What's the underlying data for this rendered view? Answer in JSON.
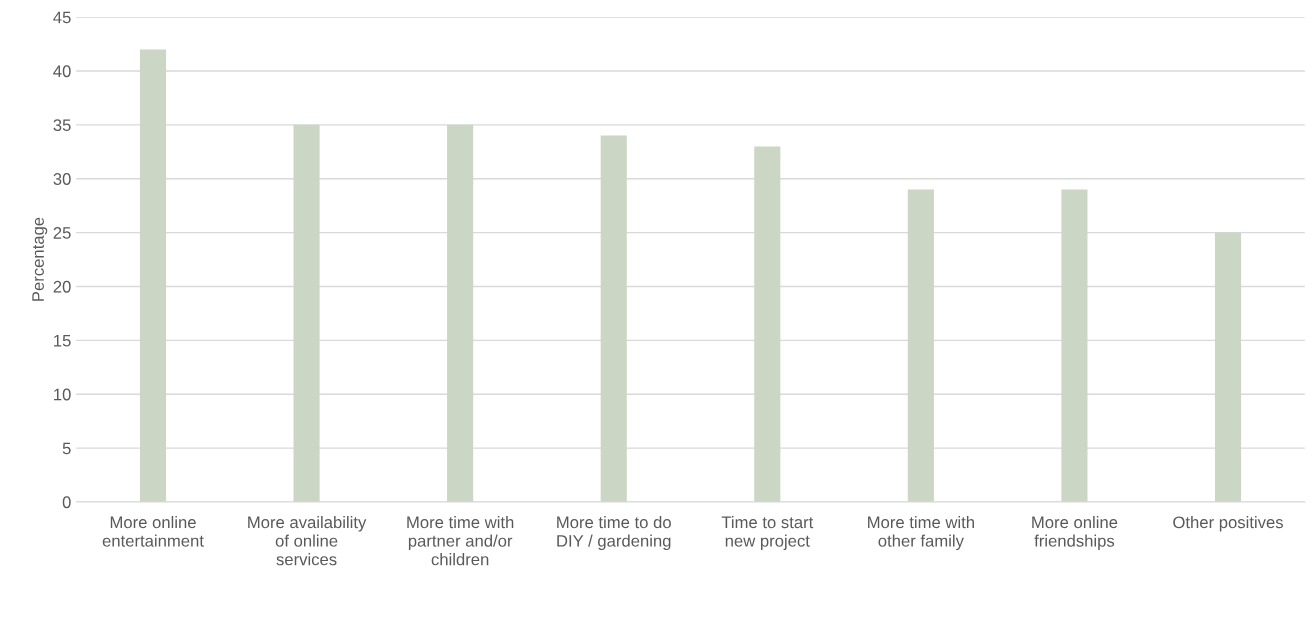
{
  "chart_data": {
    "type": "bar",
    "ylabel": "Percentage",
    "categories": [
      "More online entertainment",
      "More availability of online services",
      "More time with partner and/or children",
      "More time to do DIY / gardening",
      "Time to start new project",
      "More time with other family",
      "More online friendships",
      "Other positives"
    ],
    "values": [
      42,
      35,
      35,
      34,
      33,
      29,
      29,
      25
    ],
    "color": "#ccd6c4",
    "ylim": [
      0,
      45
    ],
    "yticks": [
      0,
      5,
      10,
      15,
      20,
      25,
      30,
      35,
      40,
      45
    ],
    "grid": "y"
  }
}
